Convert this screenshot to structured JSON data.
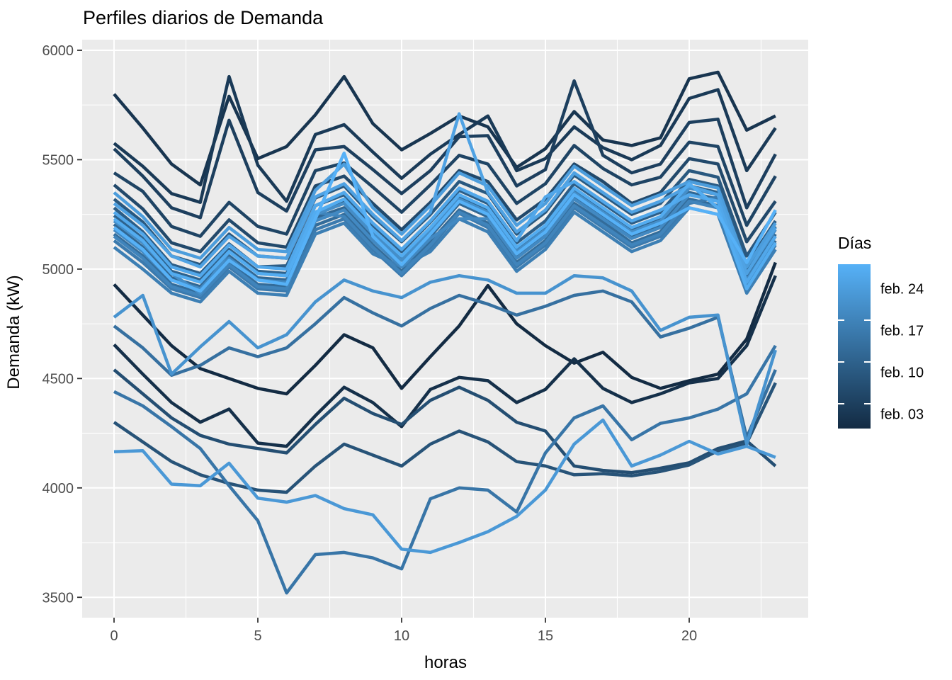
{
  "chart_data": {
    "type": "line",
    "title": "Perfiles diarios de Demanda",
    "xlabel": "horas",
    "ylabel": "Demanda (kW)",
    "x": [
      0,
      1,
      2,
      3,
      4,
      5,
      6,
      7,
      8,
      9,
      10,
      11,
      12,
      13,
      14,
      15,
      16,
      17,
      18,
      19,
      20,
      21,
      22,
      23
    ],
    "xlim": [
      0,
      23
    ],
    "ylim": [
      3500,
      6000
    ],
    "x_ticks": [
      0,
      5,
      10,
      15,
      20
    ],
    "x_minor_ticks": [
      2.5,
      7.5,
      12.5,
      17.5,
      22.5
    ],
    "y_ticks": [
      3500,
      4000,
      4500,
      5000,
      5500,
      6000
    ],
    "y_minor_ticks": [
      3750,
      4250,
      4750,
      5250,
      5750
    ],
    "grid": "on",
    "panel_bg": "#EBEBEB",
    "grid_color": "#FFFFFF",
    "tick_color": "#333333",
    "tick_label_color": "#4D4D4D",
    "line_width": 4.5,
    "legend": {
      "title": "Días",
      "position": "right",
      "type": "gradient-colorbar",
      "low_color": "#132B43",
      "high_color": "#56B1F7",
      "domain_days": [
        0.76,
        28.32
      ],
      "ticks": [
        {
          "label": "feb. 24",
          "day": 24
        },
        {
          "label": "feb. 17",
          "day": 17
        },
        {
          "label": "feb. 10",
          "day": 10
        },
        {
          "label": "feb. 03",
          "day": 3
        }
      ]
    },
    "series": [
      {
        "name": "feb. 01",
        "color": "#132B43",
        "values": [
          4930,
          4790,
          4650,
          4545,
          4500,
          4455,
          4430,
          4560,
          4700,
          4640,
          4455,
          4600,
          4740,
          4925,
          4750,
          4650,
          4570,
          4620,
          4505,
          4455,
          4490,
          4520,
          4680,
          5030
        ]
      },
      {
        "name": "feb. 02",
        "color": "#15304A",
        "values": [
          4655,
          4520,
          4390,
          4300,
          4360,
          4205,
          4190,
          4330,
          4460,
          4390,
          4280,
          4450,
          4505,
          4490,
          4390,
          4450,
          4590,
          4455,
          4390,
          4430,
          4480,
          4500,
          4650,
          4970
        ]
      },
      {
        "name": "feb. 03",
        "color": "#183550",
        "values": [
          5800,
          5645,
          5480,
          5385,
          5790,
          5505,
          5560,
          5705,
          5880,
          5665,
          5545,
          5620,
          5700,
          5650,
          5465,
          5550,
          5720,
          5590,
          5565,
          5600,
          5870,
          5900,
          5635,
          5700
        ]
      },
      {
        "name": "feb. 04",
        "color": "#1A3A57",
        "values": [
          5575,
          5470,
          5345,
          5305,
          5880,
          5475,
          5310,
          5615,
          5660,
          5535,
          5415,
          5525,
          5615,
          5700,
          5450,
          5505,
          5650,
          5555,
          5500,
          5565,
          5780,
          5820,
          5450,
          5645
        ]
      },
      {
        "name": "feb. 05",
        "color": "#1D3F5E",
        "values": [
          5550,
          5425,
          5280,
          5235,
          5680,
          5350,
          5265,
          5545,
          5560,
          5455,
          5345,
          5450,
          5605,
          5610,
          5380,
          5455,
          5860,
          5520,
          5440,
          5480,
          5670,
          5685,
          5280,
          5525
        ]
      },
      {
        "name": "feb. 06",
        "color": "#1F4464",
        "values": [
          5440,
          5355,
          5195,
          5150,
          5305,
          5195,
          5160,
          5450,
          5485,
          5375,
          5260,
          5385,
          5520,
          5480,
          5300,
          5390,
          5565,
          5460,
          5385,
          5420,
          5580,
          5560,
          5200,
          5425
        ]
      },
      {
        "name": "feb. 07",
        "color": "#22496B",
        "values": [
          5385,
          5275,
          5120,
          5080,
          5225,
          5120,
          5100,
          5380,
          5425,
          5300,
          5180,
          5305,
          5450,
          5400,
          5225,
          5320,
          5480,
          5400,
          5300,
          5350,
          5505,
          5480,
          5125,
          5310
        ]
      },
      {
        "name": "feb. 08",
        "color": "#244E72",
        "values": [
          4540,
          4430,
          4320,
          4240,
          4200,
          4180,
          4160,
          4290,
          4410,
          4340,
          4290,
          4400,
          4460,
          4400,
          4300,
          4260,
          4100,
          4080,
          4070,
          4090,
          4115,
          4180,
          4215,
          4100
        ]
      },
      {
        "name": "feb. 09",
        "color": "#275378",
        "values": [
          4300,
          4210,
          4120,
          4060,
          4020,
          3990,
          3980,
          4100,
          4200,
          4150,
          4100,
          4200,
          4260,
          4210,
          4120,
          4100,
          4060,
          4065,
          4055,
          4075,
          4105,
          4170,
          4205,
          4480
        ]
      },
      {
        "name": "feb. 10",
        "color": "#29587F",
        "values": [
          5320,
          5215,
          5060,
          5020,
          5160,
          5060,
          5050,
          5325,
          5380,
          5240,
          5125,
          5250,
          5400,
          5345,
          5160,
          5260,
          5430,
          5340,
          5250,
          5300,
          5450,
          5420,
          5060,
          5260
        ]
      },
      {
        "name": "feb. 11",
        "color": "#2C5D86",
        "values": [
          5280,
          5170,
          5020,
          4980,
          5115,
          5010,
          5015,
          5290,
          5340,
          5200,
          5080,
          5215,
          5360,
          5300,
          5120,
          5220,
          5390,
          5300,
          5210,
          5260,
          5410,
          5380,
          5020,
          5220
        ]
      },
      {
        "name": "feb. 12",
        "color": "#2E628C",
        "values": [
          5245,
          5140,
          4990,
          4950,
          5090,
          4990,
          4980,
          5260,
          5310,
          5170,
          5050,
          5180,
          5335,
          5270,
          5090,
          5190,
          5360,
          5270,
          5185,
          5230,
          5380,
          5350,
          4990,
          5195
        ]
      },
      {
        "name": "feb. 13",
        "color": "#316793",
        "values": [
          5205,
          5100,
          4960,
          4920,
          5060,
          4960,
          4950,
          5235,
          5280,
          5140,
          5020,
          5150,
          5300,
          5240,
          5060,
          5160,
          5330,
          5240,
          5150,
          5200,
          5350,
          5320,
          4960,
          5160
        ]
      },
      {
        "name": "feb. 14",
        "color": "#336C9A",
        "values": [
          5160,
          5060,
          4930,
          4890,
          5030,
          4930,
          4920,
          5200,
          5250,
          5110,
          4990,
          5125,
          5270,
          5210,
          5030,
          5130,
          5300,
          5215,
          5120,
          5170,
          5320,
          5290,
          4930,
          5130
        ]
      },
      {
        "name": "feb. 15",
        "color": "#3670A0",
        "values": [
          4740,
          4640,
          4515,
          4560,
          4640,
          4600,
          4640,
          4750,
          4870,
          4800,
          4740,
          4820,
          4880,
          4840,
          4790,
          4830,
          4880,
          4900,
          4850,
          4690,
          4730,
          4780,
          4230,
          4540
        ]
      },
      {
        "name": "feb. 16",
        "color": "#3875A7",
        "values": [
          4440,
          4375,
          4280,
          4180,
          4010,
          3850,
          3520,
          3695,
          3705,
          3680,
          3630,
          3950,
          4000,
          3990,
          3890,
          4160,
          4320,
          4375,
          4220,
          4295,
          4320,
          4360,
          4430,
          4650
        ]
      },
      {
        "name": "feb. 17",
        "color": "#3B7AAE",
        "values": [
          5130,
          5030,
          4910,
          4870,
          5010,
          4910,
          4900,
          5180,
          5230,
          5090,
          4970,
          5100,
          5255,
          5190,
          5010,
          5110,
          5280,
          5190,
          5100,
          5150,
          5300,
          5330,
          4910,
          5110
        ]
      },
      {
        "name": "feb. 18",
        "color": "#3D7FB4",
        "values": [
          5100,
          5000,
          4890,
          4850,
          4990,
          4890,
          4880,
          5160,
          5210,
          5070,
          5010,
          5080,
          5230,
          5170,
          4990,
          5090,
          5260,
          5170,
          5080,
          5130,
          5280,
          5250,
          4890,
          5090
        ]
      },
      {
        "name": "feb. 19",
        "color": "#4084BB",
        "values": [
          5150,
          5050,
          4920,
          4880,
          5020,
          4920,
          4910,
          5260,
          5240,
          5100,
          4980,
          5110,
          5260,
          5200,
          5020,
          5120,
          5290,
          5200,
          5110,
          5160,
          5310,
          5280,
          4920,
          5120
        ]
      },
      {
        "name": "feb. 20",
        "color": "#4289C2",
        "values": [
          5180,
          5080,
          4950,
          4910,
          5050,
          4950,
          4940,
          5220,
          5270,
          5130,
          5010,
          5140,
          5230,
          5230,
          5050,
          5150,
          5320,
          5230,
          5140,
          5190,
          5340,
          5310,
          4950,
          5150
        ]
      },
      {
        "name": "feb. 21",
        "color": "#458EC8",
        "values": [
          5220,
          5120,
          4980,
          4890,
          5080,
          4980,
          4970,
          5250,
          5300,
          5160,
          5040,
          5170,
          5320,
          5260,
          5080,
          5180,
          5350,
          5260,
          5170,
          5220,
          5370,
          5340,
          4980,
          5180
        ]
      },
      {
        "name": "feb. 22",
        "color": "#4793CF",
        "values": [
          4780,
          4880,
          4520,
          4645,
          4760,
          4640,
          4700,
          4850,
          4950,
          4900,
          4870,
          4940,
          4970,
          4950,
          4890,
          4890,
          4970,
          4960,
          4900,
          4720,
          4780,
          4790,
          4200,
          4630
        ]
      },
      {
        "name": "feb. 23",
        "color": "#4A98D6",
        "values": [
          4165,
          4170,
          4017,
          4010,
          4113,
          3953,
          3935,
          3965,
          3905,
          3877,
          3720,
          3705,
          3750,
          3800,
          3870,
          3990,
          4200,
          4310,
          4100,
          4150,
          4213,
          4155,
          4190,
          4140
        ]
      },
      {
        "name": "feb. 24",
        "color": "#4C9DDC",
        "values": [
          5350,
          5240,
          5090,
          5050,
          5190,
          5090,
          5080,
          5360,
          5480,
          5280,
          5160,
          5290,
          5440,
          5380,
          5200,
          5300,
          5470,
          5380,
          5290,
          5340,
          5400,
          5370,
          5010,
          5210
        ]
      },
      {
        "name": "feb. 25",
        "color": "#4FA2E3",
        "values": [
          5300,
          5200,
          5060,
          5010,
          5150,
          5060,
          5050,
          5330,
          5390,
          5250,
          5130,
          5260,
          5710,
          5350,
          5170,
          5270,
          5440,
          5350,
          5260,
          5310,
          5380,
          5340,
          4980,
          5190
        ]
      },
      {
        "name": "feb. 26",
        "color": "#51A7EA",
        "values": [
          5260,
          5160,
          5010,
          4970,
          5110,
          5010,
          5000,
          5290,
          5350,
          5210,
          5090,
          5220,
          5370,
          5310,
          5130,
          5330,
          5400,
          5310,
          5220,
          5270,
          5340,
          5310,
          4940,
          5150
        ]
      },
      {
        "name": "feb. 27",
        "color": "#53ACF0",
        "values": [
          5230,
          5130,
          4980,
          4940,
          5080,
          4980,
          4970,
          5260,
          5320,
          5180,
          5060,
          5190,
          5340,
          5280,
          5100,
          5200,
          5370,
          5280,
          5190,
          5240,
          5390,
          5280,
          4910,
          5120
        ]
      },
      {
        "name": "feb. 28",
        "color": "#56B1F7",
        "values": [
          5190,
          5090,
          4950,
          4900,
          5040,
          4950,
          4930,
          5230,
          5530,
          5150,
          5020,
          5160,
          5310,
          5250,
          5070,
          5170,
          5340,
          5250,
          5160,
          5210,
          5280,
          5250,
          5030,
          5270
        ]
      }
    ]
  }
}
